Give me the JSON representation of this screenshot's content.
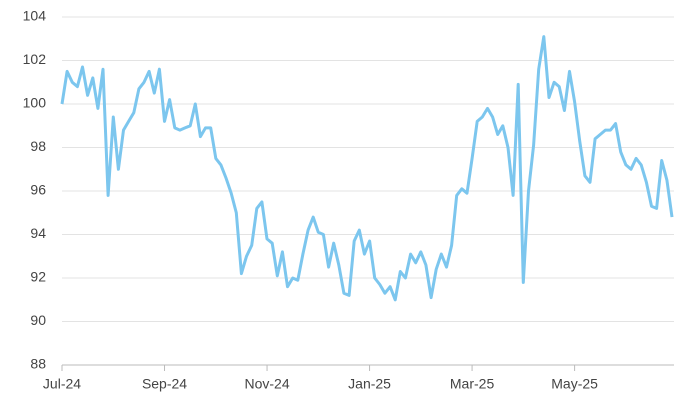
{
  "chart_data": {
    "type": "line",
    "categories": [
      "Jul-24",
      null,
      null,
      null,
      null,
      null,
      null,
      null,
      null,
      null,
      null,
      null,
      null,
      null,
      null,
      null,
      null,
      null,
      null,
      null,
      "Sep-24",
      null,
      null,
      null,
      null,
      null,
      null,
      null,
      null,
      null,
      null,
      null,
      null,
      null,
      null,
      null,
      null,
      null,
      null,
      null,
      "Nov-24",
      null,
      null,
      null,
      null,
      null,
      null,
      null,
      null,
      null,
      null,
      null,
      null,
      null,
      null,
      null,
      null,
      null,
      null,
      null,
      "Jan-25",
      null,
      null,
      null,
      null,
      null,
      null,
      null,
      null,
      null,
      null,
      null,
      null,
      null,
      null,
      null,
      null,
      null,
      null,
      null,
      "Mar-25",
      null,
      null,
      null,
      null,
      null,
      null,
      null,
      null,
      null,
      null,
      null,
      null,
      null,
      null,
      null,
      null,
      null,
      null,
      null,
      "May-25",
      null,
      null,
      null,
      null,
      null,
      null,
      null,
      null,
      null,
      null,
      null,
      null,
      null,
      null,
      null,
      null,
      null,
      null,
      null
    ],
    "values": [
      100,
      101.5,
      101,
      100.8,
      101.7,
      100.4,
      101.2,
      99.8,
      101.6,
      95.8,
      99.4,
      97.0,
      98.8,
      99.2,
      99.6,
      100.7,
      101.0,
      101.5,
      100.5,
      101.6,
      99.2,
      100.2,
      98.9,
      98.8,
      98.9,
      99.0,
      100.0,
      98.5,
      98.9,
      98.9,
      97.5,
      97.2,
      96.6,
      95.9,
      95.0,
      92.2,
      93.0,
      93.5,
      95.2,
      95.5,
      93.8,
      93.6,
      92.1,
      93.2,
      91.6,
      92.0,
      91.9,
      93.1,
      94.2,
      94.8,
      94.1,
      94.0,
      92.5,
      93.6,
      92.6,
      91.3,
      91.2,
      93.7,
      94.2,
      93.1,
      93.7,
      92.0,
      91.7,
      91.3,
      91.6,
      91.0,
      92.3,
      92.0,
      93.1,
      92.7,
      93.2,
      92.6,
      91.1,
      92.4,
      93.1,
      92.5,
      93.5,
      95.8,
      96.1,
      95.9,
      97.5,
      99.2,
      99.4,
      99.8,
      99.4,
      98.6,
      99.0,
      98.0,
      95.8,
      100.9,
      91.8,
      96.0,
      98.1,
      101.6,
      103.1,
      100.3,
      101.0,
      100.8,
      99.7,
      101.5,
      100.1,
      98.3,
      96.7,
      96.4,
      98.4,
      98.6,
      98.8,
      98.8,
      99.1,
      97.8,
      97.2,
      97.0,
      97.5,
      97.2,
      96.4,
      95.3,
      95.2,
      97.4,
      96.5,
      94.8
    ],
    "color": "#7cc6ee",
    "ylim": [
      88,
      104
    ],
    "yticks": [
      88,
      90,
      92,
      94,
      96,
      98,
      100,
      102,
      104
    ],
    "grid": true
  }
}
